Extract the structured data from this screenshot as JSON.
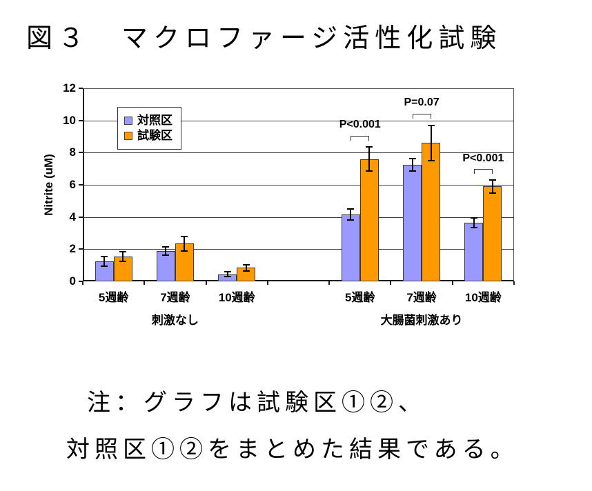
{
  "figure": {
    "title": "図３　マクロファージ活性化試験",
    "note_lines": [
      "注：グラフは試験区①②、",
      "対照区①②をまとめた結果である。"
    ]
  },
  "chart_data": {
    "type": "bar",
    "title": "図３　マクロファージ活性化試験",
    "ylabel": "Nitrite (uM)",
    "xlabel": "",
    "ylim": [
      0,
      12
    ],
    "yticks": [
      0,
      2,
      4,
      6,
      8,
      10,
      12
    ],
    "grid": true,
    "legend_position": "upper-left-inside",
    "groups": [
      {
        "label": "刺激なし",
        "categories": [
          "5週齢",
          "7週齢",
          "10週齢"
        ]
      },
      {
        "label": "大腸菌刺激あり",
        "categories": [
          "5週齢",
          "7週齢",
          "10週齢"
        ]
      }
    ],
    "series": [
      {
        "name": "対照区",
        "color": "#9999FF",
        "values": [
          [
            1.25,
            1.9,
            0.45
          ],
          [
            4.15,
            7.25,
            3.65
          ]
        ],
        "errors": [
          [
            0.3,
            0.25,
            0.15
          ],
          [
            0.35,
            0.4,
            0.3
          ]
        ]
      },
      {
        "name": "試験区",
        "color": "#FF9900",
        "values": [
          [
            1.55,
            2.35,
            0.85
          ],
          [
            7.6,
            8.6,
            5.9
          ]
        ],
        "errors": [
          [
            0.3,
            0.45,
            0.2
          ],
          [
            0.75,
            1.1,
            0.4
          ]
        ]
      }
    ],
    "annotations": [
      {
        "label": "P<0.001",
        "group": 1,
        "category": 0,
        "bracket_y": 9.05,
        "label_y": 10.1
      },
      {
        "label": "P=0.07",
        "group": 1,
        "category": 1,
        "bracket_y": 10.4,
        "label_y": 11.5
      },
      {
        "label": "P<0.001",
        "group": 1,
        "category": 2,
        "bracket_y": 7.0,
        "label_y": 8.0
      }
    ]
  }
}
